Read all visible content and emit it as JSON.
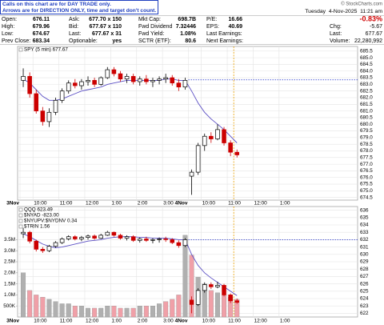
{
  "notice": [
    "Calls on this chart are for DAY TRADE only.",
    "Arrows are for DIRECTION ONLY, time and target don't count."
  ],
  "copyright": "© StockCharts.com",
  "timestamp": "Tuesday  4-Nov-2025  11:21 am",
  "quote": {
    "rows": [
      [
        [
          "Open:",
          "676.11"
        ],
        [
          "Ask:",
          "677.70 x 150"
        ],
        [
          "Mkt Cap:",
          "698.7B"
        ],
        [
          "P/E:",
          "16.66"
        ]
      ],
      [
        [
          "High:",
          "679.96"
        ],
        [
          "Bid:",
          "677.67 x 110"
        ],
        [
          "Fwd Dividend",
          "7.32446"
        ],
        [
          "EPS:",
          "40.69"
        ]
      ],
      [
        [
          "Low:",
          "674.67"
        ],
        [
          "Last:",
          "677.67 x 31"
        ],
        [
          "Fwd Yield:",
          "1.08%"
        ],
        [
          "Last Earnings:"
        ]
      ],
      [
        [
          "Prev Close:",
          "683.34"
        ],
        [
          "Optionable:",
          "yes"
        ],
        [
          "SCTR (ETF):",
          "80.6"
        ],
        [
          "Next Earnings:"
        ]
      ]
    ]
  },
  "change_pct": "-0.83%",
  "summary": [
    [
      "Chg:",
      "-5.67"
    ],
    [
      "Last:",
      "677.67"
    ],
    [
      "Volume:",
      "22,280,992"
    ]
  ],
  "chart_data": [
    {
      "type": "candlestick",
      "legend": [
        "SPY (5 min) 677.67"
      ],
      "xlim": [
        0,
        52
      ],
      "xticks": [
        {
          "value": 0,
          "label": "3Nov"
        },
        {
          "value": 2,
          "label": "10:00"
        },
        {
          "value": 6,
          "label": "11:00"
        },
        {
          "value": 10,
          "label": "12:00"
        },
        {
          "value": 14,
          "label": "1:00"
        },
        {
          "value": 18,
          "label": "2:00"
        },
        {
          "value": 22,
          "label": "3:00"
        },
        {
          "value": 26,
          "label": "4Nov"
        },
        {
          "value": 28,
          "label": "10:00"
        },
        {
          "value": 32,
          "label": "11:00"
        },
        {
          "value": 36,
          "label": "12:00"
        },
        {
          "value": 40,
          "label": "1:00"
        }
      ],
      "ylim": [
        674.3,
        685.85
      ],
      "yticks": [
        674.5,
        {
          "value": 675,
          "label": "675.0"
        },
        675.5,
        {
          "value": 676,
          "label": "676.0"
        },
        676.5,
        {
          "value": 677,
          "label": "677.0"
        },
        677.5,
        {
          "value": 678,
          "label": "678.0"
        },
        678.5,
        {
          "value": 679,
          "label": "679.0"
        },
        679.5,
        {
          "value": 680,
          "label": "680.0"
        },
        680.5,
        {
          "value": 681,
          "label": "681.0"
        },
        681.5,
        {
          "value": 682,
          "label": "682.0"
        },
        682.5,
        {
          "value": 683,
          "label": "683.0"
        },
        683.5,
        {
          "value": 684,
          "label": "684.0"
        },
        684.5,
        {
          "value": 685,
          "label": "685.0"
        },
        685.5
      ],
      "grid": true,
      "open": [
        683.3,
        683.6,
        682.3,
        681.0,
        680.2,
        680.9,
        681.8,
        682.5,
        683.1,
        682.9,
        683.2,
        683.3,
        683.0,
        683.5,
        684.1,
        683.8,
        683.4,
        683.6,
        683.2,
        683.4,
        683.2,
        683.3,
        683.4,
        683.5,
        683.1,
        682.8,
        676.1,
        676.4,
        678.4,
        679.1,
        678.9,
        679.6,
        678.6,
        677.9
      ],
      "high": [
        684.2,
        683.9,
        682.6,
        681.3,
        681.2,
        682.0,
        682.7,
        683.3,
        683.4,
        683.4,
        683.6,
        683.5,
        683.6,
        684.3,
        684.3,
        684.0,
        683.8,
        683.8,
        683.6,
        683.7,
        683.5,
        683.6,
        683.8,
        683.7,
        683.4,
        683.5,
        676.6,
        678.6,
        679.3,
        679.4,
        680.0,
        679.8,
        678.8,
        678.1
      ],
      "low": [
        682.8,
        682.0,
        680.8,
        679.9,
        679.8,
        680.7,
        681.6,
        682.3,
        682.7,
        682.6,
        682.9,
        682.8,
        682.9,
        683.4,
        683.6,
        683.2,
        683.1,
        683.0,
        682.9,
        683.0,
        682.8,
        683.0,
        683.1,
        682.9,
        682.5,
        682.6,
        674.7,
        676.2,
        678.0,
        678.6,
        678.8,
        678.4,
        677.6,
        677.5
      ],
      "close": [
        683.6,
        682.3,
        681.0,
        680.2,
        680.9,
        681.8,
        682.5,
        683.1,
        682.9,
        683.2,
        683.3,
        683.0,
        683.5,
        684.1,
        683.8,
        683.4,
        683.6,
        683.2,
        683.4,
        683.2,
        683.3,
        683.4,
        683.5,
        683.1,
        682.8,
        683.3,
        676.4,
        678.4,
        679.1,
        678.9,
        679.6,
        678.6,
        677.9,
        677.7
      ],
      "line_values": [
        683.4,
        683.1,
        682.6,
        682.1,
        681.8,
        681.8,
        681.9,
        682.1,
        682.3,
        682.5,
        682.6,
        682.7,
        682.8,
        683.0,
        683.1,
        683.2,
        683.3,
        683.3,
        683.3,
        683.3,
        683.3,
        683.3,
        683.4,
        683.4,
        683.3,
        683.3,
        682.5,
        681.6,
        680.9,
        680.4,
        680.0,
        679.6,
        679.1,
        678.6
      ],
      "up_color": "#000000",
      "down_color": "#cc0000",
      "line_color": "#5b4fc4"
    },
    {
      "type": "candlestick-volume",
      "legend": [
        "QQQ 623.49",
        "$NYAD -823.00",
        "$NYUPV:$NYDNV 0.34",
        "$TRIN 1.56"
      ],
      "xlim": [
        0,
        52
      ],
      "xticks": [
        {
          "value": 0,
          "label": "3Nov"
        },
        {
          "value": 2,
          "label": "10:00"
        },
        {
          "value": 6,
          "label": "11:00"
        },
        {
          "value": 10,
          "label": "12:00"
        },
        {
          "value": 14,
          "label": "1:00"
        },
        {
          "value": 18,
          "label": "2:00"
        },
        {
          "value": 22,
          "label": "3:00"
        },
        {
          "value": 26,
          "label": "4Nov"
        },
        {
          "value": 28,
          "label": "10:00"
        },
        {
          "value": 32,
          "label": "11:00"
        },
        {
          "value": 36,
          "label": "12:00"
        },
        {
          "value": 40,
          "label": "1:00"
        }
      ],
      "ylim": [
        0,
        5000000
      ],
      "yticks": [
        {
          "value": 500000,
          "label": "500K"
        },
        {
          "value": 1000000,
          "label": "1.0M"
        },
        {
          "value": 1500000,
          "label": "1.5M"
        },
        {
          "value": 2000000,
          "label": "2.0M"
        },
        {
          "value": 2500000,
          "label": "2.5M"
        },
        {
          "value": 3000000,
          "label": "3.0M"
        },
        {
          "value": 3500000,
          "label": "3.5M"
        }
      ],
      "volumes": [
        2000000,
        1200000,
        1000000,
        900000,
        800000,
        700000,
        600000,
        600000,
        500000,
        500000,
        400000,
        400000,
        400000,
        500000,
        500000,
        400000,
        400000,
        400000,
        500000,
        500000,
        500000,
        600000,
        700000,
        800000,
        1000000,
        3700000,
        2800000,
        1800000,
        1500000,
        1200000,
        1100000,
        1000000,
        900000,
        800000
      ],
      "y2lim": [
        621.5,
        636.5
      ],
      "y2ticks": [
        622,
        623,
        624,
        625,
        626,
        627,
        628,
        629,
        630,
        631,
        632,
        633,
        634,
        635,
        636
      ],
      "grid": true,
      "open": [
        632.8,
        633.0,
        631.8,
        630.7,
        630.5,
        631.1,
        631.6,
        632.1,
        632.4,
        632.1,
        632.3,
        632.5,
        632.2,
        632.6,
        633.0,
        632.6,
        632.2,
        632.4,
        631.9,
        632.1,
        631.9,
        632.0,
        632.1,
        632.0,
        631.6,
        631.2,
        623.8,
        623.2,
        625.1,
        625.9,
        625.6,
        625.8,
        624.5,
        623.7
      ],
      "high": [
        633.6,
        633.2,
        632.0,
        631.0,
        631.3,
        631.8,
        632.3,
        632.6,
        632.6,
        632.5,
        632.7,
        632.7,
        632.8,
        633.2,
        633.1,
        632.8,
        632.6,
        632.6,
        632.3,
        632.4,
        632.2,
        632.3,
        632.4,
        632.2,
        631.9,
        632.2,
        624.3,
        625.4,
        626.2,
        626.2,
        626.3,
        626.0,
        624.7,
        624.0
      ],
      "low": [
        632.2,
        631.5,
        630.4,
        630.2,
        630.3,
        630.9,
        631.4,
        631.9,
        631.9,
        631.8,
        632.0,
        632.0,
        632.1,
        632.5,
        632.4,
        632.0,
        631.9,
        631.7,
        631.6,
        631.7,
        631.5,
        631.6,
        631.7,
        631.4,
        630.9,
        631.0,
        622.0,
        623.0,
        624.8,
        625.3,
        625.4,
        624.3,
        623.4,
        623.3
      ],
      "close": [
        633.0,
        631.8,
        630.7,
        630.5,
        631.1,
        631.6,
        632.1,
        632.4,
        632.1,
        632.3,
        632.5,
        632.2,
        632.6,
        633.0,
        632.6,
        632.2,
        632.4,
        631.9,
        632.1,
        631.9,
        632.0,
        632.1,
        632.0,
        631.6,
        631.2,
        632.0,
        623.2,
        625.1,
        625.9,
        625.6,
        625.8,
        624.5,
        623.7,
        623.49
      ],
      "line_values": [
        632.8,
        632.4,
        631.9,
        631.4,
        631.1,
        630.9,
        631.0,
        631.2,
        631.4,
        631.6,
        631.8,
        631.9,
        632.0,
        632.2,
        632.3,
        632.4,
        632.4,
        632.4,
        632.3,
        632.3,
        632.2,
        632.2,
        632.2,
        632.1,
        632.0,
        632.0,
        630.0,
        628.5,
        627.5,
        626.8,
        626.2,
        625.6,
        625.0,
        624.4
      ],
      "up_color": "#000000",
      "down_color": "#cc0000",
      "line_color": "#5b4fc4",
      "volume_up_color": "#b0b0b0",
      "volume_down_color": "#f0a0a8"
    }
  ]
}
